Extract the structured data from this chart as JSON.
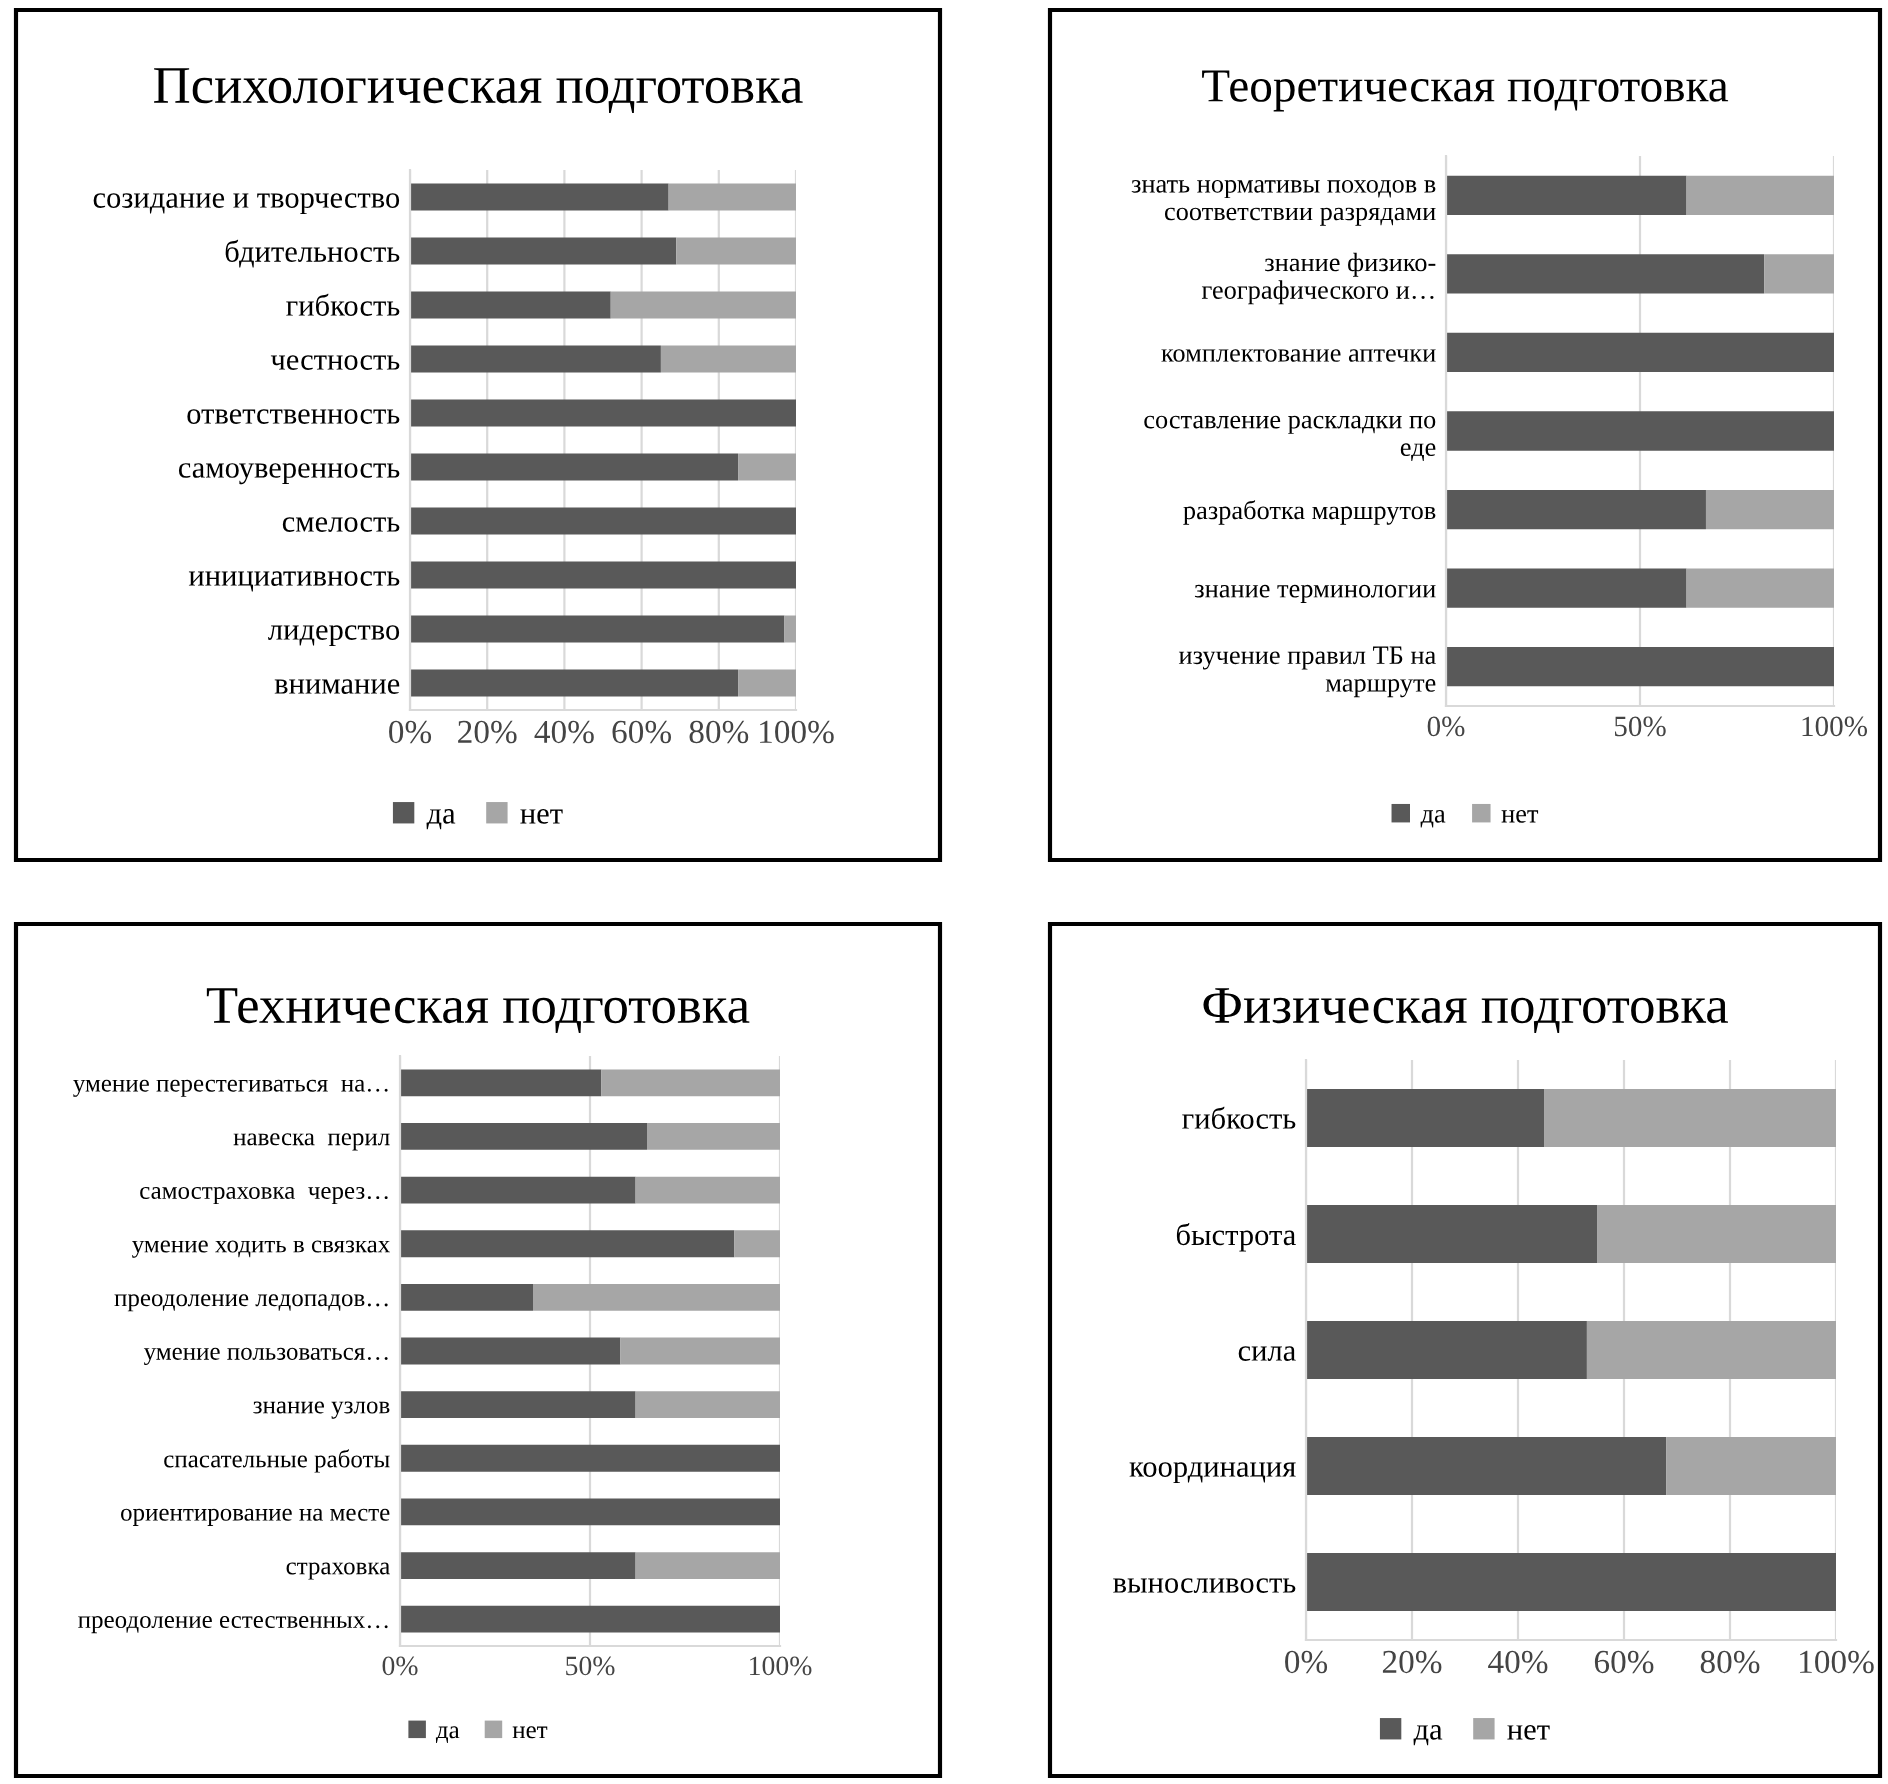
{
  "chart_data": [
    {
      "type": "bar",
      "orientation": "horizontal",
      "stacked": true,
      "title": "Психологическая подготовка",
      "categories": [
        "созидание и творчество",
        "бдительность",
        "гибкость",
        "честность",
        "ответственность",
        "самоуверенность",
        "смелость",
        "инициативность",
        "лидерство",
        "внимание"
      ],
      "series": [
        {
          "name": "да",
          "color": "#595959",
          "values": [
            67,
            69,
            52,
            65,
            100,
            85,
            100,
            100,
            97,
            85
          ]
        },
        {
          "name": "нет",
          "color": "#a6a6a6",
          "values": [
            33,
            31,
            48,
            35,
            0,
            15,
            0,
            0,
            3,
            15
          ]
        }
      ],
      "xlim": [
        0,
        100
      ],
      "xticks": [
        {
          "value": 0,
          "label": "0%"
        },
        {
          "value": 20,
          "label": "20%"
        },
        {
          "value": 40,
          "label": "40%"
        },
        {
          "value": 60,
          "label": "60%"
        },
        {
          "value": 80,
          "label": "80%"
        },
        {
          "value": 100,
          "label": "100%"
        }
      ],
      "grid": "x",
      "legend": "bottom"
    },
    {
      "type": "bar",
      "orientation": "horizontal",
      "stacked": true,
      "title": "Теоретическая подготовка",
      "categories": [
        "знать нормативы походов в\nсоответствии разрядами",
        "знание физико-\nгеографического и…",
        "комплектование аптечки",
        "составление раскладки по\nеде",
        "разработка маршрутов",
        "знание терминологии",
        "изучение правил ТБ на\nмаршруте"
      ],
      "series": [
        {
          "name": "да",
          "color": "#595959",
          "values": [
            62,
            82,
            100,
            100,
            67,
            62,
            100
          ]
        },
        {
          "name": "нет",
          "color": "#a6a6a6",
          "values": [
            38,
            18,
            0,
            0,
            33,
            38,
            0
          ]
        }
      ],
      "xlim": [
        0,
        100
      ],
      "xticks": [
        {
          "value": 0,
          "label": "0%"
        },
        {
          "value": 50,
          "label": "50%"
        },
        {
          "value": 100,
          "label": "100%"
        }
      ],
      "grid": "x",
      "legend": "bottom"
    },
    {
      "type": "bar",
      "orientation": "horizontal",
      "stacked": true,
      "title": "Техническая подготовка",
      "categories": [
        "умение перестегиваться  на…",
        "навеска  перил",
        "самостраховка  через…",
        "умение ходить в связках",
        "преодоление ледопадов…",
        "умение пользоваться…",
        "знание узлов",
        "спасательные работы",
        "ориентирование на месте",
        "страховка",
        "преодоление естественных…"
      ],
      "series": [
        {
          "name": "да",
          "color": "#595959",
          "values": [
            53,
            65,
            62,
            88,
            35,
            58,
            62,
            100,
            100,
            62,
            100
          ]
        },
        {
          "name": "нет",
          "color": "#a6a6a6",
          "values": [
            47,
            35,
            38,
            12,
            65,
            42,
            38,
            0,
            0,
            38,
            0
          ]
        }
      ],
      "xlim": [
        0,
        100
      ],
      "xticks": [
        {
          "value": 0,
          "label": "0%"
        },
        {
          "value": 50,
          "label": "50%"
        },
        {
          "value": 100,
          "label": "100%"
        }
      ],
      "grid": "x",
      "legend": "bottom"
    },
    {
      "type": "bar",
      "orientation": "horizontal",
      "stacked": true,
      "title": "Физическая подготовка",
      "categories": [
        "гибкость",
        "быстрота",
        "сила",
        "координация",
        "выносливость"
      ],
      "series": [
        {
          "name": "да",
          "color": "#595959",
          "values": [
            45,
            55,
            53,
            68,
            100
          ]
        },
        {
          "name": "нет",
          "color": "#a6a6a6",
          "values": [
            55,
            45,
            47,
            32,
            0
          ]
        }
      ],
      "xlim": [
        0,
        100
      ],
      "xticks": [
        {
          "value": 0,
          "label": "0%"
        },
        {
          "value": 20,
          "label": "20%"
        },
        {
          "value": 40,
          "label": "40%"
        },
        {
          "value": 60,
          "label": "60%"
        },
        {
          "value": 80,
          "label": "80%"
        },
        {
          "value": 100,
          "label": "100%"
        }
      ],
      "grid": "x",
      "legend": "bottom"
    }
  ]
}
